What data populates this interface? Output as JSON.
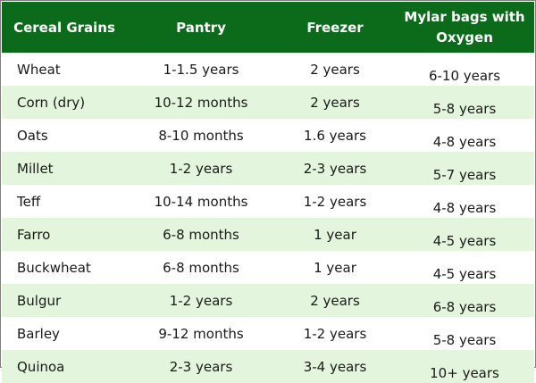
{
  "headers": {
    "grain": "Cereal Grains",
    "pantry": "Pantry",
    "freezer": "Freezer",
    "mylar_line1": "Mylar bags with",
    "mylar_line2": "Oxygen"
  },
  "rows": [
    {
      "grain": "Wheat",
      "pantry": "1-1.5 years",
      "freezer": "2 years",
      "mylar": "6-10 years"
    },
    {
      "grain": "Corn (dry)",
      "pantry": "10-12 months",
      "freezer": "2 years",
      "mylar": "5-8 years"
    },
    {
      "grain": "Oats",
      "pantry": "8-10 months",
      "freezer": "1.6 years",
      "mylar": "4-8 years"
    },
    {
      "grain": "Millet",
      "pantry": "1-2 years",
      "freezer": "2-3 years",
      "mylar": "5-7 years"
    },
    {
      "grain": "Teff",
      "pantry": "10-14 months",
      "freezer": "1-2 years",
      "mylar": "4-8 years"
    },
    {
      "grain": "Farro",
      "pantry": "6-8 months",
      "freezer": "1 year",
      "mylar": "4-5 years"
    },
    {
      "grain": "Buckwheat",
      "pantry": "6-8 months",
      "freezer": "1 year",
      "mylar": "4-5 years"
    },
    {
      "grain": "Bulgur",
      "pantry": "1-2 years",
      "freezer": "2 years",
      "mylar": "6-8 years"
    },
    {
      "grain": "Barley",
      "pantry": "9-12 months",
      "freezer": "1-2 years",
      "mylar": "5-8 years"
    },
    {
      "grain": "Quinoa",
      "pantry": "2-3 years",
      "freezer": "3-4 years",
      "mylar": "10+ years"
    }
  ],
  "colors": {
    "header_bg": "#0c6b1a",
    "header_text": "#ffffff",
    "stripe": "#e3f5dc",
    "border": "#7f7f7f"
  }
}
